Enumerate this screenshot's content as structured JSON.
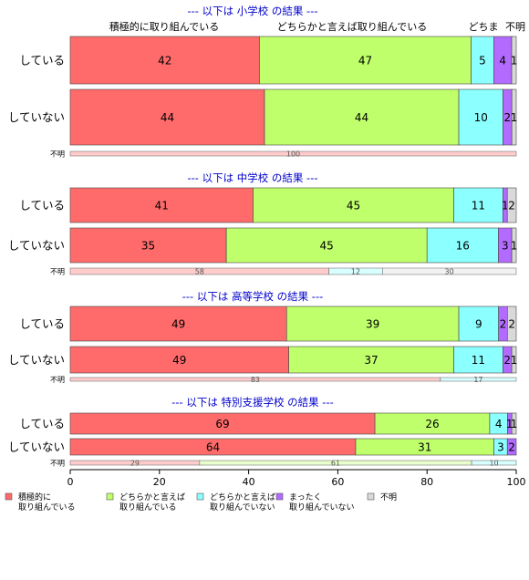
{
  "chart_data": {
    "type": "bar",
    "orientation": "horizontal",
    "stacked": true,
    "xlim": [
      0,
      100
    ],
    "x_ticks": [
      "0",
      "20",
      "40",
      "60",
      "80",
      "100"
    ],
    "grid": false,
    "legend_position": "bottom",
    "column_headers": [
      "積極的に取り組んでいる",
      "どちらかと言えば取り組んでいる",
      "どちま",
      "不明"
    ],
    "categories_legend": [
      {
        "label": "積極的に\n取り組んでいる",
        "color": "#ff6b6b"
      },
      {
        "label": "どちらかと言えば\n取り組んでいる",
        "color": "#bfff6b"
      },
      {
        "label": "どちらかと言えば\n取り組んでいない",
        "color": "#8cffff"
      },
      {
        "label": "まったく\n取り組んでいない",
        "color": "#b36bff"
      },
      {
        "label": "不明",
        "color": "#d9d9d9"
      }
    ],
    "panels": [
      {
        "title": "--- 以下は 小学校 の結果 ---",
        "rows": [
          {
            "label": "している",
            "values": [
              42,
              47,
              5,
              4,
              1
            ]
          },
          {
            "label": "していない",
            "values": [
              44,
              44,
              10,
              2,
              1
            ]
          }
        ],
        "unknown": {
          "label": "不明",
          "values": [
            100,
            0,
            0,
            0,
            0
          ],
          "value_labels": [
            "100",
            "",
            "",
            "",
            ""
          ]
        }
      },
      {
        "title": "--- 以下は 中学校 の結果 ---",
        "rows": [
          {
            "label": "している",
            "values": [
              41,
              45,
              11,
              1,
              2
            ]
          },
          {
            "label": "していない",
            "values": [
              35,
              45,
              16,
              3,
              1
            ]
          }
        ],
        "unknown": {
          "label": "不明",
          "values": [
            58,
            0,
            12,
            0,
            30
          ],
          "value_labels": [
            "58",
            "",
            "12",
            "",
            "30"
          ]
        }
      },
      {
        "title": "--- 以下は 高等学校 の結果 ---",
        "rows": [
          {
            "label": "している",
            "values": [
              49,
              39,
              9,
              2,
              2
            ]
          },
          {
            "label": "していない",
            "values": [
              49,
              37,
              11,
              2,
              1
            ]
          }
        ],
        "unknown": {
          "label": "不明",
          "values": [
            83,
            0,
            17,
            0,
            0
          ],
          "value_labels": [
            "83",
            "",
            "17",
            "",
            ""
          ]
        }
      },
      {
        "title": "--- 以下は 特別支援学校 の結果 ---",
        "rows": [
          {
            "label": "している",
            "values": [
              69,
              26,
              4,
              1,
              1
            ]
          },
          {
            "label": "していない",
            "values": [
              64,
              31,
              3,
              2,
              0
            ]
          }
        ],
        "unknown": {
          "label": "不明",
          "values": [
            29,
            61,
            10,
            0,
            0
          ],
          "value_labels": [
            "29",
            "61",
            "10",
            "",
            ""
          ]
        }
      }
    ]
  }
}
